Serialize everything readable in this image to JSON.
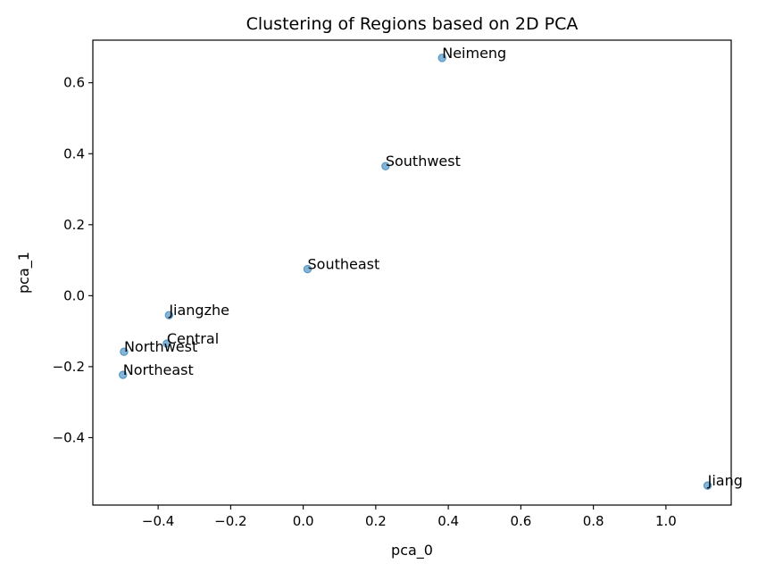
{
  "chart_data": {
    "type": "scatter",
    "title": "Clustering of Regions based on 2D PCA",
    "xlabel": "pca_0",
    "ylabel": "pca_1",
    "xlim": [
      -0.58,
      1.18
    ],
    "ylim": [
      -0.59,
      0.72
    ],
    "xticks": [
      -0.4,
      -0.2,
      0.0,
      0.2,
      0.4,
      0.6,
      0.8,
      1.0
    ],
    "xtick_labels": [
      "−0.4",
      "−0.2",
      "0.0",
      "0.2",
      "0.4",
      "0.6",
      "0.8",
      "1.0"
    ],
    "yticks": [
      -0.4,
      -0.2,
      0.0,
      0.2,
      0.4,
      0.6
    ],
    "ytick_labels": [
      "−0.4",
      "−0.2",
      "0.0",
      "0.2",
      "0.4",
      "0.6"
    ],
    "grid": false,
    "marker_color": "#1f77b4",
    "points": [
      {
        "label": "Neimeng",
        "x": 0.383,
        "y": 0.67
      },
      {
        "label": "Southwest",
        "x": 0.227,
        "y": 0.365
      },
      {
        "label": "Southeast",
        "x": 0.012,
        "y": 0.075
      },
      {
        "label": "Jiangzhe",
        "x": -0.37,
        "y": -0.055
      },
      {
        "label": "Central",
        "x": -0.376,
        "y": -0.135
      },
      {
        "label": "Northwest",
        "x": -0.494,
        "y": -0.158
      },
      {
        "label": "Northeast",
        "x": -0.497,
        "y": -0.223
      },
      {
        "label": "Jiang",
        "x": 1.115,
        "y": -0.535
      }
    ]
  }
}
